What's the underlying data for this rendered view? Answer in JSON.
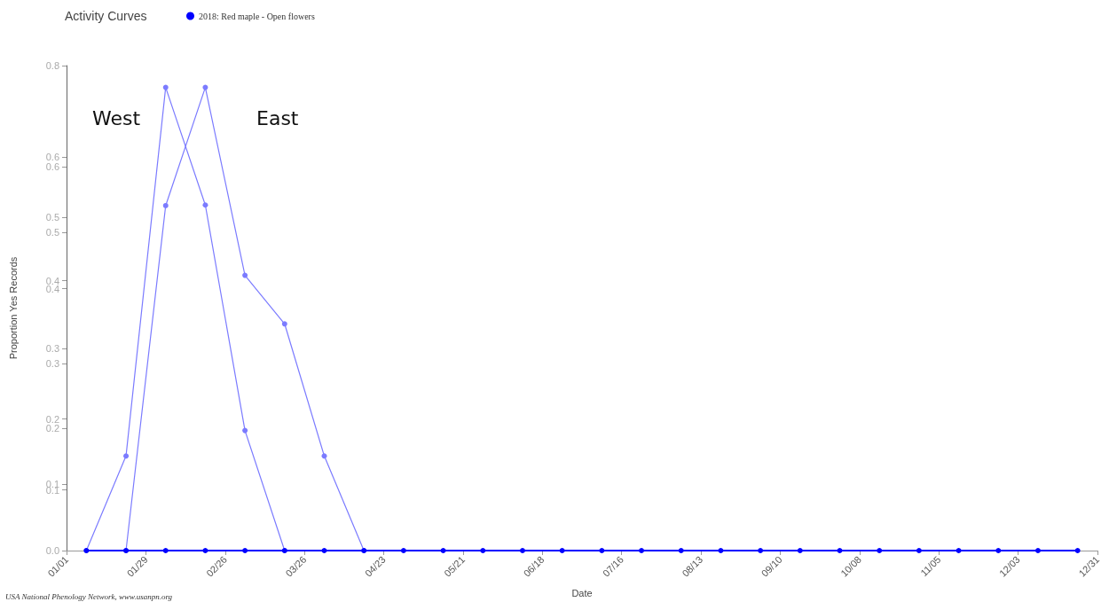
{
  "chart_data": {
    "type": "line",
    "title": "Activity Curves",
    "xlabel": "Date",
    "ylabel": "Proportion Yes Records",
    "xlim": [
      "--01-01",
      "--12-31"
    ],
    "xticks": [
      {
        "value": "--01-01",
        "label": "01/01"
      },
      {
        "value": "--01-29",
        "label": "01/29"
      },
      {
        "value": "--02-26",
        "label": "02/26"
      },
      {
        "value": "--03-26",
        "label": "03/26"
      },
      {
        "value": "--04-23",
        "label": "04/23"
      },
      {
        "value": "--05-21",
        "label": "05/21"
      },
      {
        "value": "--06-18",
        "label": "06/18"
      },
      {
        "value": "--07-16",
        "label": "07/16"
      },
      {
        "value": "--08-13",
        "label": "08/13"
      },
      {
        "value": "--09-10",
        "label": "09/10"
      },
      {
        "value": "--10-08",
        "label": "10/08"
      },
      {
        "value": "--11-05",
        "label": "11/05"
      },
      {
        "value": "--12-03",
        "label": "12/03"
      },
      {
        "value": "--12-31",
        "label": "12/31"
      }
    ],
    "ylim": [
      0,
      0.8
    ],
    "yticks": [
      {
        "value": 0,
        "label": "0.0"
      },
      {
        "value": 0.1,
        "label": "0.1"
      },
      {
        "value": 0.109,
        "label": "0.1"
      },
      {
        "value": 0.202,
        "label": "0.2"
      },
      {
        "value": 0.217,
        "label": "0.2"
      },
      {
        "value": 0.308,
        "label": "0.3"
      },
      {
        "value": 0.333,
        "label": "0.3"
      },
      {
        "value": 0.432,
        "label": "0.4"
      },
      {
        "value": 0.445,
        "label": "0.4"
      },
      {
        "value": 0.525,
        "label": "0.5"
      },
      {
        "value": 0.55,
        "label": "0.5"
      },
      {
        "value": 0.633,
        "label": "0.6"
      },
      {
        "value": 0.649,
        "label": "0.6"
      },
      {
        "value": 0.8,
        "label": "0.8"
      }
    ],
    "grid": false,
    "legend": "top",
    "marker": "circle",
    "series": [
      {
        "color": "#7b7bff",
        "x": [
          "--01-08",
          "--01-22",
          "--02-05",
          "--02-19",
          "--03-05",
          "--03-19"
        ],
        "values": [
          0,
          0.156,
          0.764,
          0.57,
          0.198,
          0
        ]
      },
      {
        "color": "#7b7bff",
        "x": [
          "--01-22",
          "--02-05",
          "--02-19",
          "--03-05",
          "--03-19",
          "--04-02",
          "--04-16"
        ],
        "values": [
          0,
          0.569,
          0.764,
          0.454,
          0.374,
          0.156,
          0
        ]
      },
      {
        "name": "2018: Red maple - Open flowers",
        "color": "#0000ff",
        "x": [
          "--01-08",
          "--01-22",
          "--02-05",
          "--02-19",
          "--03-05",
          "--03-19",
          "--04-02",
          "--04-16",
          "--04-30",
          "--05-14",
          "--05-28",
          "--06-11",
          "--06-25",
          "--07-09",
          "--07-23",
          "--08-06",
          "--08-20",
          "--09-03",
          "--09-17",
          "--10-01",
          "--10-15",
          "--10-29",
          "--11-12",
          "--11-26",
          "--12-10",
          "--12-24"
        ],
        "values": [
          0,
          0,
          0,
          0,
          0,
          0,
          0,
          0,
          0,
          0,
          0,
          0,
          0,
          0,
          0,
          0,
          0,
          0,
          0,
          0,
          0,
          0,
          0,
          0,
          0,
          0
        ]
      }
    ],
    "annotations": [
      "West",
      "East",
      "USA National Phenology Network, www.usanpn.org"
    ]
  }
}
